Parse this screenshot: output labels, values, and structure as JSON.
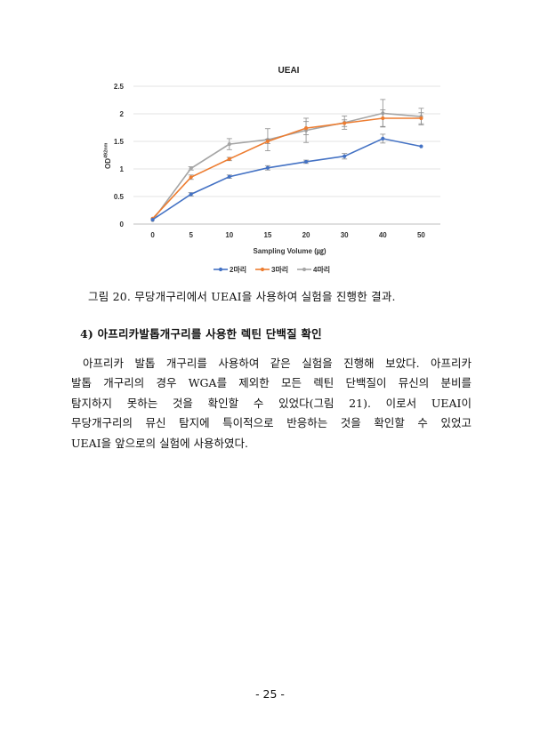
{
  "chart_data": {
    "type": "line",
    "title": "UEAI",
    "xlabel": "Sampling Volume (㎍)",
    "ylabel": "OD",
    "ylabel_sup": "492nm",
    "x": [
      0,
      5,
      10,
      15,
      20,
      30,
      40,
      50
    ],
    "ylim": [
      0,
      2.5
    ],
    "yticks": [
      "0",
      "0.5",
      "1",
      "1.5",
      "2",
      "2.5"
    ],
    "grid": true,
    "legend_position": "bottom",
    "series": [
      {
        "name": "2마리",
        "color": "#4472C4",
        "values": [
          0.08,
          0.54,
          0.86,
          1.02,
          1.13,
          1.23,
          1.55,
          1.41
        ],
        "errors": [
          0.0,
          0.03,
          0.03,
          0.04,
          0.03,
          0.05,
          0.08,
          0.0
        ]
      },
      {
        "name": "3마리",
        "color": "#ED7D31",
        "values": [
          0.1,
          0.85,
          1.18,
          1.5,
          1.74,
          1.83,
          1.92,
          1.92
        ],
        "errors": [
          0.0,
          0.04,
          0.03,
          0.04,
          0.12,
          0.06,
          0.15,
          0.1
        ]
      },
      {
        "name": "4마리",
        "color": "#A5A5A5",
        "values": [
          0.07,
          1.01,
          1.45,
          1.53,
          1.7,
          1.84,
          2.01,
          1.95
        ],
        "errors": [
          0.0,
          0.03,
          0.1,
          0.2,
          0.22,
          0.12,
          0.25,
          0.15
        ]
      }
    ]
  },
  "caption": "그림 20. 무당개구리에서 UEAI을 사용하여 실험을 진행한 결과.",
  "section_title": "4) 아프리카발톱개구리를 사용한 렉틴 단백질 확인",
  "body_lines": [
    "아프리카 발톱 개구리를 사용하여 같은 실험을 진행해 보았다. 아프리카",
    "발톱 개구리의 경우 WGA를 제외한 모든 렉틴 단백질이 뮤신의 분비를",
    "탐지하지 못하는 것을 확인할 수 있었다(그림 21). 이로서 UEAI이",
    "무당개구리의 뮤신 탐지에 특이적으로 반응하는 것을 확인할 수 있었고",
    "UEAI을 앞으로의 실험에 사용하였다."
  ],
  "page_number": "- 25 -"
}
